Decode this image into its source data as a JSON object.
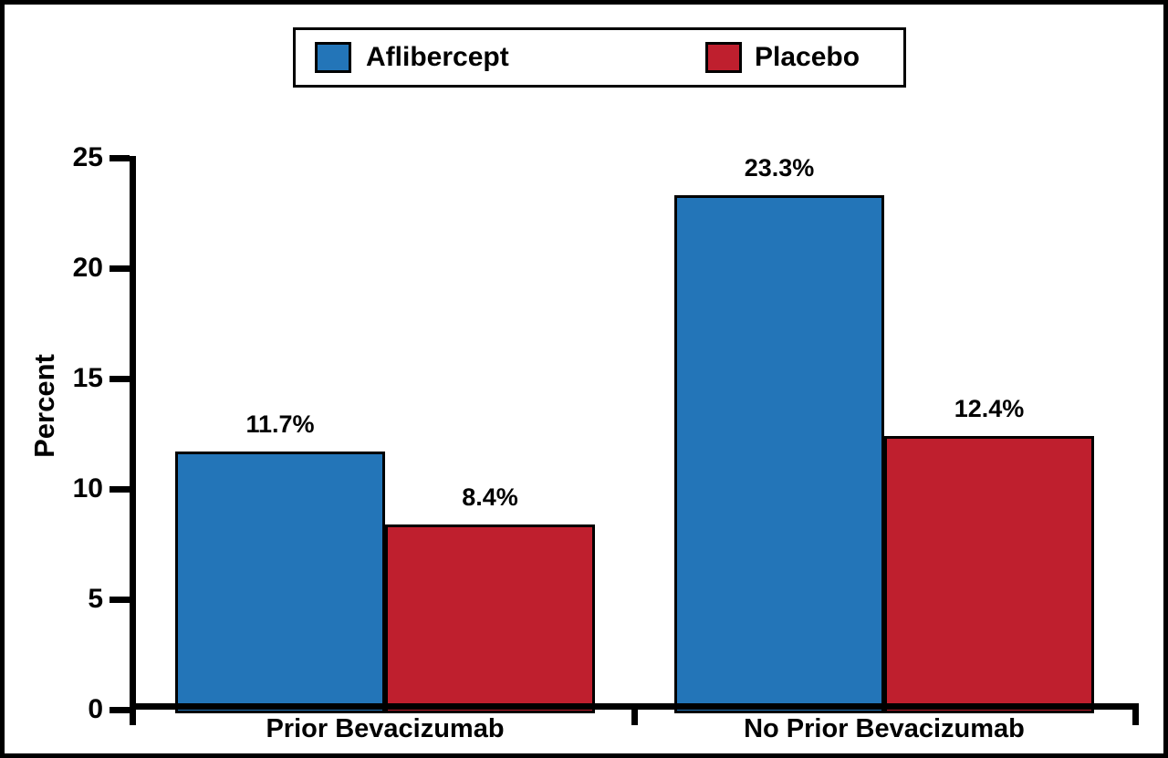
{
  "figure": {
    "background_color": "#FFFFFF",
    "border_color": "#000000"
  },
  "chart_data": {
    "type": "bar",
    "categories": [
      "Prior Bevacizumab",
      "No Prior Bevacizumab"
    ],
    "series": [
      {
        "name": "Aflibercept",
        "color": "#2375B8",
        "values": [
          11.7,
          23.3
        ],
        "value_labels": [
          "11.7%",
          "23.3%"
        ]
      },
      {
        "name": "Placebo",
        "color": "#BF1F2E",
        "values": [
          8.4,
          12.4
        ],
        "value_labels": [
          "8.4%",
          "12.4%"
        ]
      }
    ],
    "title": "",
    "xlabel": "",
    "ylabel": "Percent",
    "ylim": [
      0,
      25
    ],
    "yticks": [
      0,
      5,
      10,
      15,
      20,
      25
    ],
    "grid": false,
    "legend_position": "top",
    "bar_labels_shown": true
  }
}
